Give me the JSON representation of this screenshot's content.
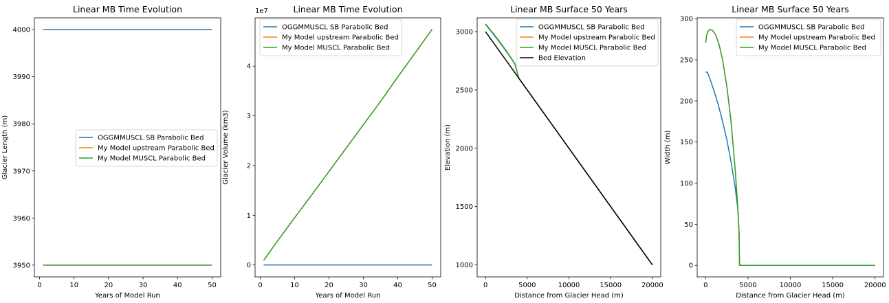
{
  "chart_data": [
    {
      "type": "line",
      "title": "Linear MB Time Evolution",
      "xlabel": "Years of Model Run",
      "ylabel": "Glacier Length (m)",
      "xlim": [
        -1.5,
        52.5
      ],
      "ylim": [
        3947.5,
        4002.5
      ],
      "xticks": [
        0,
        10,
        20,
        30,
        40,
        50
      ],
      "yticks": [
        3950,
        3960,
        3970,
        3980,
        3990,
        4000
      ],
      "ytick_labels": [
        "3950",
        "3960",
        "3970",
        "3980",
        "3990",
        "4000"
      ],
      "offset_text": "",
      "legend_position": "center-right",
      "series": [
        {
          "name": "OGGMMUSCL SB Parabolic Bed",
          "color": "#1f77b4",
          "x": [
            1,
            50
          ],
          "y": [
            4000,
            4000
          ]
        },
        {
          "name": "My Model upstream Parabolic Bed",
          "color": "#ff7f0e",
          "x": [
            1,
            50
          ],
          "y": [
            3950,
            3950
          ]
        },
        {
          "name": "My Model MUSCL Parabolic Bed",
          "color": "#2ca02c",
          "x": [
            1,
            50
          ],
          "y": [
            3950,
            3950
          ]
        }
      ]
    },
    {
      "type": "line",
      "title": "Linear MB Time Evolution",
      "xlabel": "Years of Model Run",
      "ylabel": "Glacier Volume (km3)",
      "xlim": [
        -1.5,
        52.5
      ],
      "ylim": [
        -2400000,
        49700000
      ],
      "xticks": [
        0,
        10,
        20,
        30,
        40,
        50
      ],
      "yticks": [
        0,
        10000000,
        20000000,
        30000000,
        40000000
      ],
      "ytick_labels": [
        "0",
        "1",
        "2",
        "3",
        "4"
      ],
      "offset_text": "1e7",
      "legend_position": "top-left",
      "series": [
        {
          "name": "OGGMMUSCL SB Parabolic Bed",
          "color": "#1f77b4",
          "x": [
            1,
            50
          ],
          "y": [
            0,
            0
          ]
        },
        {
          "name": "My Model upstream Parabolic Bed",
          "color": "#ff7f0e",
          "x": [
            1,
            5,
            10,
            15,
            20,
            25,
            30,
            35,
            40,
            45,
            50
          ],
          "y": [
            950000,
            4800000,
            9500000,
            14100000,
            18800000,
            23500000,
            28200000,
            32900000,
            37800000,
            42600000,
            47400000
          ]
        },
        {
          "name": "My Model MUSCL Parabolic Bed",
          "color": "#2ca02c",
          "x": [
            1,
            5,
            10,
            15,
            20,
            25,
            30,
            35,
            40,
            45,
            50
          ],
          "y": [
            950000,
            4800000,
            9500000,
            14100000,
            18800000,
            23500000,
            28200000,
            32900000,
            37800000,
            42600000,
            47400000
          ]
        }
      ]
    },
    {
      "type": "line",
      "title": "Linear MB Surface 50 Years",
      "xlabel": "Distance from Glacier Head (m)",
      "ylabel": "Elevation (m)",
      "xlim": [
        -1000,
        21000
      ],
      "ylim": [
        897,
        3118
      ],
      "xticks": [
        0,
        5000,
        10000,
        15000,
        20000
      ],
      "yticks": [
        1000,
        1500,
        2000,
        2500,
        3000
      ],
      "ytick_labels": [
        "1000",
        "1500",
        "2000",
        "2500",
        "3000"
      ],
      "offset_text": "",
      "legend_position": "top-right",
      "series": [
        {
          "name": "OGGMMUSCL SB Parabolic Bed",
          "color": "#1f77b4",
          "x": [
            0,
            500,
            1000,
            1500,
            2000,
            2500,
            3000,
            3500,
            4000,
            20000
          ],
          "y": [
            3062,
            3018,
            2972,
            2926,
            2878,
            2829,
            2778,
            2724,
            2600,
            1000
          ]
        },
        {
          "name": "My Model upstream Parabolic Bed",
          "color": "#ff7f0e",
          "x": [
            0,
            500,
            1000,
            1500,
            2000,
            2500,
            3000,
            3500,
            4000,
            20000
          ],
          "y": [
            3066,
            3022,
            2978,
            2932,
            2884,
            2834,
            2781,
            2727,
            2600,
            1000
          ]
        },
        {
          "name": "My Model MUSCL Parabolic Bed",
          "color": "#2ca02c",
          "x": [
            0,
            500,
            1000,
            1500,
            2000,
            2500,
            3000,
            3500,
            4000,
            20000
          ],
          "y": [
            3066,
            3022,
            2978,
            2932,
            2884,
            2834,
            2781,
            2727,
            2600,
            1000
          ]
        },
        {
          "name": "Bed Elevation",
          "color": "#000000",
          "x": [
            0,
            20000
          ],
          "y": [
            3000,
            1000
          ]
        }
      ]
    },
    {
      "type": "line",
      "title": "Linear MB Surface 50 Years",
      "xlabel": "Distance from Glacier Head (m)",
      "ylabel": "Width (m)",
      "xlim": [
        -1000,
        21000
      ],
      "ylim": [
        -14,
        301
      ],
      "xticks": [
        0,
        5000,
        10000,
        15000,
        20000
      ],
      "yticks": [
        0,
        50,
        100,
        150,
        200,
        250,
        300
      ],
      "ytick_labels": [
        "0",
        "50",
        "100",
        "150",
        "200",
        "250",
        "300"
      ],
      "offset_text": "",
      "legend_position": "top-right",
      "series": [
        {
          "name": "OGGMMUSCL SB Parabolic Bed",
          "color": "#1f77b4",
          "x": [
            0,
            200,
            500,
            1000,
            1500,
            2000,
            2500,
            3000,
            3500,
            3800,
            3950,
            4000,
            20000
          ],
          "y": [
            235,
            235,
            227,
            212,
            195,
            175,
            153,
            126,
            94,
            68,
            40,
            0,
            0
          ]
        },
        {
          "name": "My Model upstream Parabolic Bed",
          "color": "#ff7f0e",
          "x": [
            0,
            150,
            300,
            500,
            800,
            1200,
            1600,
            2000,
            2500,
            3000,
            3500,
            3800,
            3950,
            4000,
            20000
          ],
          "y": [
            271,
            281,
            285,
            287,
            286,
            280,
            268,
            250,
            218,
            175,
            115,
            70,
            40,
            0,
            0
          ]
        },
        {
          "name": "My Model MUSCL Parabolic Bed",
          "color": "#2ca02c",
          "x": [
            0,
            150,
            300,
            500,
            800,
            1200,
            1600,
            2000,
            2500,
            3000,
            3500,
            3800,
            3950,
            4000,
            20000
          ],
          "y": [
            271,
            281,
            285,
            287,
            286,
            280,
            268,
            250,
            218,
            175,
            115,
            70,
            40,
            0,
            0
          ]
        }
      ]
    }
  ]
}
